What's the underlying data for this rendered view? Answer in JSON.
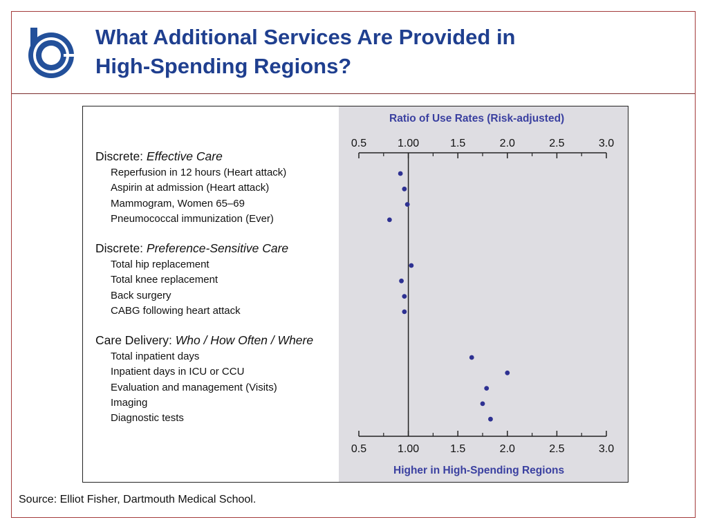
{
  "header": {
    "title_line1": "What Additional Services Are Provided in",
    "title_line2": "High-Spending Regions?",
    "logo_icon": "dartmouth-b-logo-icon",
    "title_color": "#1f3f8f",
    "logo_color": "#23509a"
  },
  "footer": {
    "source": "Source: Elliot Fisher, Dartmouth Medical School."
  },
  "chart_data": {
    "type": "scatter",
    "top_axis_title": "Ratio of Use Rates (Risk-adjusted)",
    "bottom_axis_title": "Higher in High-Spending Regions",
    "xlim": [
      0.5,
      3.0
    ],
    "major_ticks": [
      0.5,
      1.0,
      1.5,
      2.0,
      2.5,
      3.0
    ],
    "tick_labels": [
      "0.5",
      "1.00",
      "1.5",
      "2.0",
      "2.5",
      "3.0"
    ],
    "minor_ticks": [
      0.75,
      1.25,
      1.75,
      2.25,
      2.75
    ],
    "reference_line": 1.0,
    "point_color": "#2e3192",
    "groups": [
      {
        "label_prefix": "Discrete:",
        "label_italic": "Effective Care",
        "items": [
          {
            "label": "Reperfusion in 12 hours (Heart attack)",
            "value": 0.92
          },
          {
            "label": "Aspirin at admission (Heart attack)",
            "value": 0.96
          },
          {
            "label": "Mammogram, Women 65–69",
            "value": 0.99
          },
          {
            "label": "Pneumococcal immunization (Ever)",
            "value": 0.81
          }
        ]
      },
      {
        "label_prefix": "Discrete:",
        "label_italic": "Preference-Sensitive Care",
        "items": [
          {
            "label": "Total hip replacement",
            "value": 1.03
          },
          {
            "label": "Total knee replacement",
            "value": 0.93
          },
          {
            "label": "Back surgery",
            "value": 0.96
          },
          {
            "label": "CABG following heart attack",
            "value": 0.96
          }
        ]
      },
      {
        "label_prefix": "Care Delivery:",
        "label_italic": "Who / How Often / Where",
        "items": [
          {
            "label": "Total inpatient days",
            "value": 1.64
          },
          {
            "label": "Inpatient days in ICU or CCU",
            "value": 2.0
          },
          {
            "label": "Evaluation and management (Visits)",
            "value": 1.79
          },
          {
            "label": "Imaging",
            "value": 1.75
          },
          {
            "label": "Diagnostic tests",
            "value": 1.83
          }
        ]
      }
    ]
  }
}
